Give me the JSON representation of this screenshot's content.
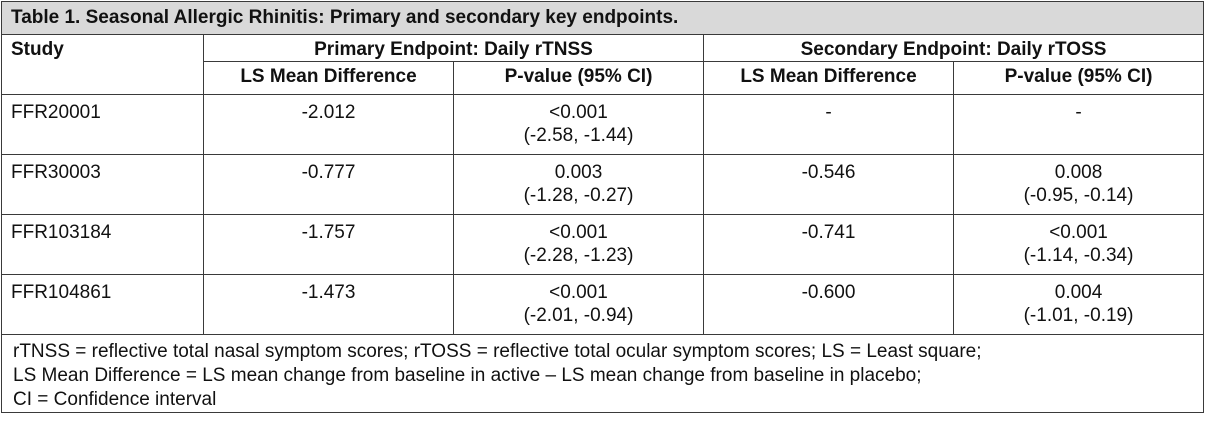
{
  "title": "Table 1. Seasonal Allergic Rhinitis: Primary and secondary key endpoints.",
  "header": {
    "study": "Study",
    "primary": "Primary Endpoint: Daily rTNSS",
    "secondary": "Secondary Endpoint: Daily rTOSS",
    "ls_mean": "LS Mean Difference",
    "pvalue": "P-value (95% CI)"
  },
  "rows": [
    {
      "study": "FFR20001",
      "p_ls": "-2.012",
      "p_pv": "<0.001",
      "p_ci": "(-2.58, -1.44)",
      "s_ls": "-",
      "s_pv": "-",
      "s_ci": ""
    },
    {
      "study": "FFR30003",
      "p_ls": "-0.777",
      "p_pv": "0.003",
      "p_ci": "(-1.28, -0.27)",
      "s_ls": "-0.546",
      "s_pv": "0.008",
      "s_ci": "(-0.95, -0.14)"
    },
    {
      "study": "FFR103184",
      "p_ls": "-1.757",
      "p_pv": "<0.001",
      "p_ci": "(-2.28, -1.23)",
      "s_ls": "-0.741",
      "s_pv": "<0.001",
      "s_ci": "(-1.14, -0.34)"
    },
    {
      "study": "FFR104861",
      "p_ls": "-1.473",
      "p_pv": "<0.001",
      "p_ci": "(-2.01, -0.94)",
      "s_ls": "-0.600",
      "s_pv": "0.004",
      "s_ci": "(-1.01, -0.19)"
    }
  ],
  "footnote": [
    "rTNSS = reflective total nasal symptom scores; rTOSS = reflective total ocular symptom scores; LS = Least square;",
    "LS Mean Difference = LS mean change from baseline in active – LS mean change from baseline in placebo;",
    "CI = Confidence interval"
  ]
}
